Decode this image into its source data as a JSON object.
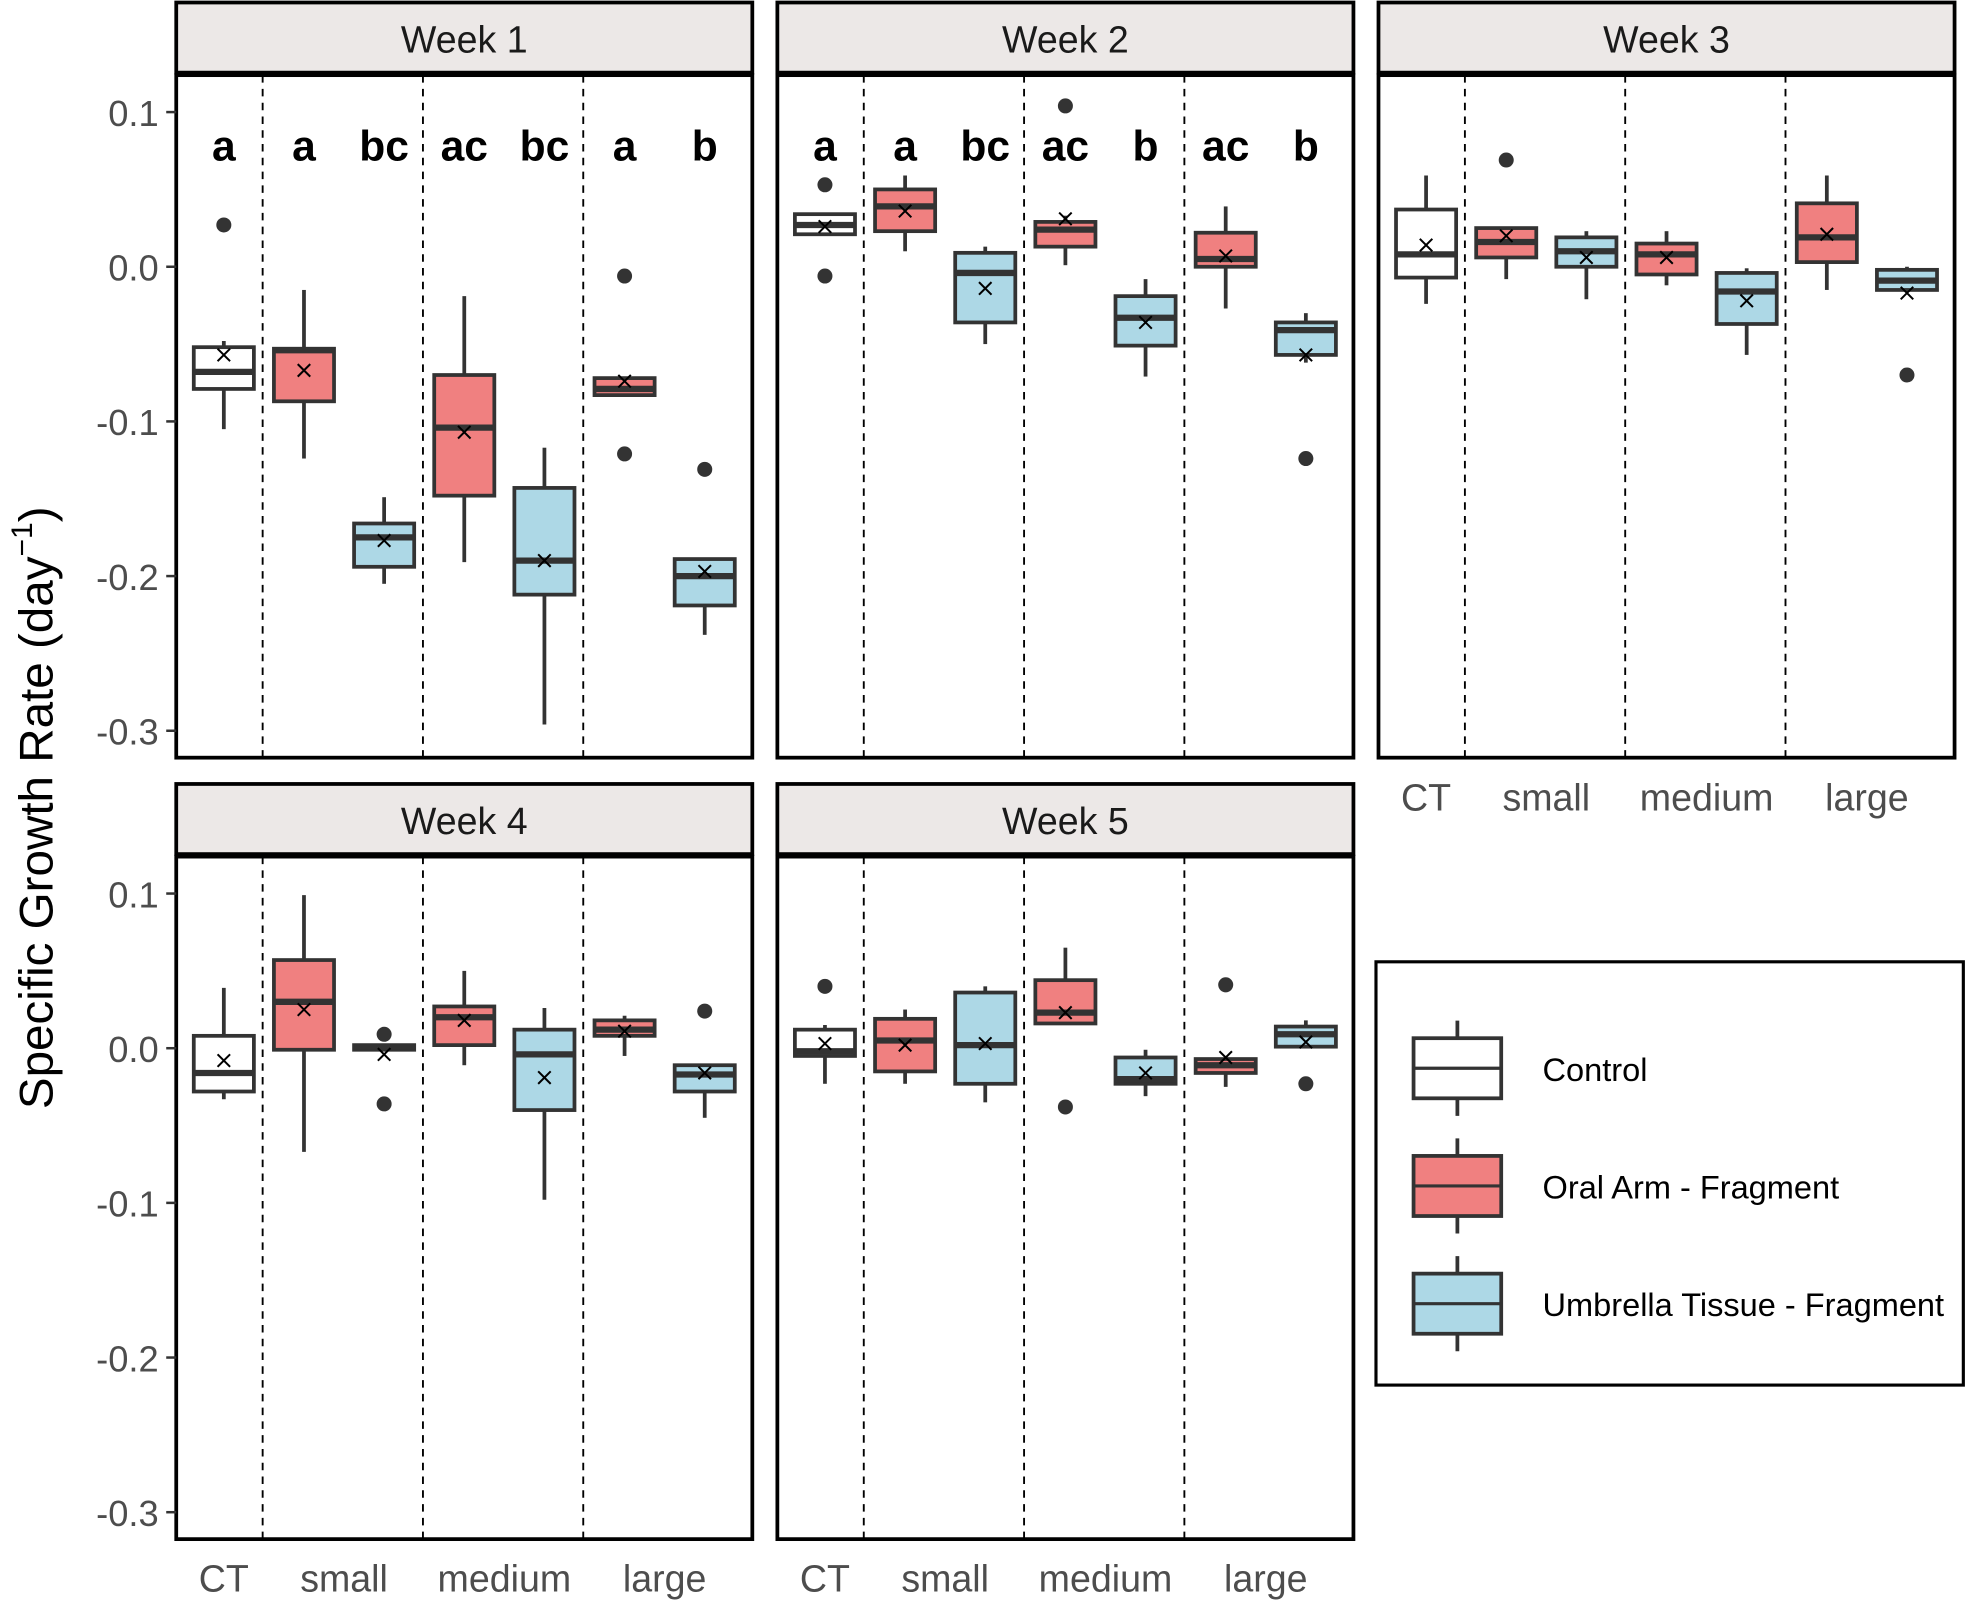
{
  "chart_data": {
    "type": "boxplot",
    "ylabel": "Specific Growth Rate (day",
    "ylabel_sup": "−1",
    "ylabel_close": ")",
    "ylim": [
      -0.32,
      0.12
    ],
    "yticks": [
      "0.1",
      "0.0",
      "-0.1",
      "-0.2",
      "-0.3"
    ],
    "ytick_values": [
      0.1,
      0.0,
      -0.1,
      -0.2,
      -0.3
    ],
    "x_categories": [
      "CT",
      "small",
      "medium",
      "large"
    ],
    "colors": {
      "Control": "#FFFFFF",
      "Oral Arm - Fragment": "#F08080",
      "Umbrella Tissue - Fragment": "#ADD8E6",
      "outline": "#333333"
    },
    "legend": {
      "placement": "bottom-right",
      "entries": [
        "Control",
        "Oral Arm - Fragment",
        "Umbrella Tissue - Fragment"
      ]
    },
    "group_order": [
      "CT Control",
      "small Oral Arm",
      "small Umbrella",
      "medium Oral Arm",
      "medium Umbrella",
      "large Oral Arm",
      "large Umbrella"
    ],
    "panels": [
      {
        "title": "Week 1",
        "letters": [
          "a",
          "a",
          "bc",
          "ac",
          "bc",
          "a",
          "b"
        ],
        "boxes": [
          {
            "type": "Control",
            "wl": -0.105,
            "q1": -0.079,
            "med": -0.068,
            "q3": -0.052,
            "wu": -0.048,
            "mean": -0.057,
            "out": [
              0.027
            ]
          },
          {
            "type": "Oral Arm - Fragment",
            "wl": -0.124,
            "q1": -0.087,
            "med": -0.054,
            "q3": -0.053,
            "wu": -0.015,
            "mean": -0.067,
            "out": []
          },
          {
            "type": "Umbrella Tissue - Fragment",
            "wl": -0.205,
            "q1": -0.194,
            "med": -0.175,
            "q3": -0.166,
            "wu": -0.149,
            "mean": -0.177,
            "out": []
          },
          {
            "type": "Oral Arm - Fragment",
            "wl": -0.191,
            "q1": -0.148,
            "med": -0.104,
            "q3": -0.07,
            "wu": -0.019,
            "mean": -0.107,
            "out": []
          },
          {
            "type": "Umbrella Tissue - Fragment",
            "wl": -0.296,
            "q1": -0.212,
            "med": -0.19,
            "q3": -0.143,
            "wu": -0.117,
            "mean": -0.19,
            "out": []
          },
          {
            "type": "Oral Arm - Fragment",
            "wl": -0.083,
            "q1": -0.083,
            "med": -0.079,
            "q3": -0.072,
            "wu": -0.072,
            "mean": -0.074,
            "out": [
              -0.006,
              -0.121
            ]
          },
          {
            "type": "Umbrella Tissue - Fragment",
            "wl": -0.238,
            "q1": -0.219,
            "med": -0.2,
            "q3": -0.189,
            "wu": -0.188,
            "mean": -0.197,
            "out": [
              -0.131
            ]
          }
        ]
      },
      {
        "title": "Week 2",
        "letters": [
          "a",
          "a",
          "bc",
          "ac",
          "b",
          "ac",
          "b"
        ],
        "boxes": [
          {
            "type": "Control",
            "wl": 0.021,
            "q1": 0.021,
            "med": 0.027,
            "q3": 0.034,
            "wu": 0.034,
            "mean": 0.026,
            "out": [
              0.053,
              -0.006
            ]
          },
          {
            "type": "Oral Arm - Fragment",
            "wl": 0.01,
            "q1": 0.023,
            "med": 0.039,
            "q3": 0.05,
            "wu": 0.059,
            "mean": 0.036,
            "out": []
          },
          {
            "type": "Umbrella Tissue - Fragment",
            "wl": -0.05,
            "q1": -0.036,
            "med": -0.004,
            "q3": 0.009,
            "wu": 0.013,
            "mean": -0.014,
            "out": []
          },
          {
            "type": "Oral Arm - Fragment",
            "wl": 0.001,
            "q1": 0.013,
            "med": 0.024,
            "q3": 0.029,
            "wu": 0.033,
            "mean": 0.031,
            "out": [
              0.104
            ]
          },
          {
            "type": "Umbrella Tissue - Fragment",
            "wl": -0.071,
            "q1": -0.051,
            "med": -0.033,
            "q3": -0.019,
            "wu": -0.008,
            "mean": -0.036,
            "out": []
          },
          {
            "type": "Oral Arm - Fragment",
            "wl": -0.027,
            "q1": 0.0,
            "med": 0.005,
            "q3": 0.022,
            "wu": 0.039,
            "mean": 0.007,
            "out": []
          },
          {
            "type": "Umbrella Tissue - Fragment",
            "wl": -0.062,
            "q1": -0.057,
            "med": -0.041,
            "q3": -0.036,
            "wu": -0.03,
            "mean": -0.057,
            "out": [
              -0.124
            ]
          }
        ]
      },
      {
        "title": "Week 3",
        "letters": [],
        "boxes": [
          {
            "type": "Control",
            "wl": -0.024,
            "q1": -0.007,
            "med": 0.008,
            "q3": 0.037,
            "wu": 0.059,
            "mean": 0.014,
            "out": []
          },
          {
            "type": "Oral Arm - Fragment",
            "wl": -0.008,
            "q1": 0.006,
            "med": 0.016,
            "q3": 0.025,
            "wu": 0.025,
            "mean": 0.02,
            "out": [
              0.069
            ]
          },
          {
            "type": "Umbrella Tissue - Fragment",
            "wl": -0.021,
            "q1": 0.0,
            "med": 0.01,
            "q3": 0.019,
            "wu": 0.023,
            "mean": 0.006,
            "out": []
          },
          {
            "type": "Oral Arm - Fragment",
            "wl": -0.012,
            "q1": -0.005,
            "med": 0.008,
            "q3": 0.015,
            "wu": 0.023,
            "mean": 0.006,
            "out": []
          },
          {
            "type": "Umbrella Tissue - Fragment",
            "wl": -0.057,
            "q1": -0.037,
            "med": -0.016,
            "q3": -0.004,
            "wu": -0.001,
            "mean": -0.022,
            "out": []
          },
          {
            "type": "Oral Arm - Fragment",
            "wl": -0.015,
            "q1": 0.003,
            "med": 0.019,
            "q3": 0.041,
            "wu": 0.059,
            "mean": 0.021,
            "out": []
          },
          {
            "type": "Umbrella Tissue - Fragment",
            "wl": -0.015,
            "q1": -0.015,
            "med": -0.009,
            "q3": -0.002,
            "wu": 0.0,
            "mean": -0.017,
            "out": [
              -0.07
            ]
          }
        ]
      },
      {
        "title": "Week 4",
        "letters": [],
        "boxes": [
          {
            "type": "Control",
            "wl": -0.033,
            "q1": -0.028,
            "med": -0.016,
            "q3": 0.008,
            "wu": 0.039,
            "mean": -0.008,
            "out": []
          },
          {
            "type": "Oral Arm - Fragment",
            "wl": -0.067,
            "q1": -0.001,
            "med": 0.03,
            "q3": 0.057,
            "wu": 0.099,
            "mean": 0.025,
            "out": []
          },
          {
            "type": "Umbrella Tissue - Fragment",
            "wl": -0.001,
            "q1": -0.001,
            "med": 0.001,
            "q3": 0.002,
            "wu": 0.002,
            "mean": -0.004,
            "out": [
              0.009,
              -0.036
            ]
          },
          {
            "type": "Oral Arm - Fragment",
            "wl": -0.011,
            "q1": 0.002,
            "med": 0.02,
            "q3": 0.027,
            "wu": 0.05,
            "mean": 0.018,
            "out": []
          },
          {
            "type": "Umbrella Tissue - Fragment",
            "wl": -0.098,
            "q1": -0.04,
            "med": -0.004,
            "q3": 0.012,
            "wu": 0.026,
            "mean": -0.019,
            "out": []
          },
          {
            "type": "Oral Arm - Fragment",
            "wl": -0.005,
            "q1": 0.008,
            "med": 0.012,
            "q3": 0.018,
            "wu": 0.021,
            "mean": 0.011,
            "out": []
          },
          {
            "type": "Umbrella Tissue - Fragment",
            "wl": -0.045,
            "q1": -0.028,
            "med": -0.017,
            "q3": -0.011,
            "wu": -0.011,
            "mean": -0.016,
            "out": [
              0.024
            ]
          }
        ]
      },
      {
        "title": "Week 5",
        "letters": [],
        "boxes": [
          {
            "type": "Control",
            "wl": -0.023,
            "q1": -0.005,
            "med": -0.002,
            "q3": 0.012,
            "wu": 0.015,
            "mean": 0.003,
            "out": [
              0.04
            ]
          },
          {
            "type": "Oral Arm - Fragment",
            "wl": -0.023,
            "q1": -0.015,
            "med": 0.005,
            "q3": 0.019,
            "wu": 0.025,
            "mean": 0.002,
            "out": []
          },
          {
            "type": "Umbrella Tissue - Fragment",
            "wl": -0.035,
            "q1": -0.023,
            "med": 0.002,
            "q3": 0.036,
            "wu": 0.04,
            "mean": 0.003,
            "out": []
          },
          {
            "type": "Oral Arm - Fragment",
            "wl": 0.016,
            "q1": 0.016,
            "med": 0.023,
            "q3": 0.044,
            "wu": 0.065,
            "mean": 0.023,
            "out": [
              -0.038
            ]
          },
          {
            "type": "Umbrella Tissue - Fragment",
            "wl": -0.031,
            "q1": -0.023,
            "med": -0.02,
            "q3": -0.006,
            "wu": -0.001,
            "mean": -0.016,
            "out": []
          },
          {
            "type": "Oral Arm - Fragment",
            "wl": -0.025,
            "q1": -0.016,
            "med": -0.011,
            "q3": -0.007,
            "wu": -0.005,
            "mean": -0.006,
            "out": [
              0.041
            ]
          },
          {
            "type": "Umbrella Tissue - Fragment",
            "wl": 0.001,
            "q1": 0.001,
            "med": 0.009,
            "q3": 0.014,
            "wu": 0.018,
            "mean": 0.004,
            "out": [
              -0.023
            ]
          }
        ]
      }
    ]
  }
}
